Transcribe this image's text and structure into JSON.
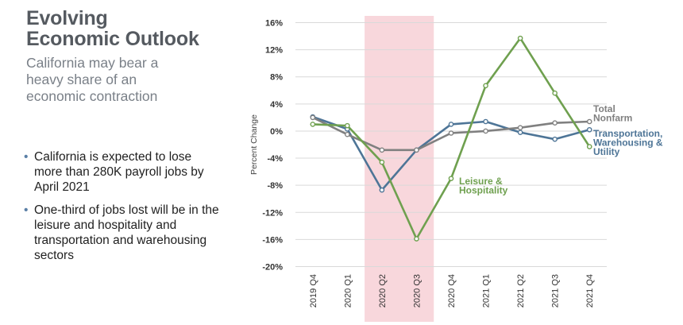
{
  "heading": {
    "title_lines": [
      "Evolving",
      "Economic Outlook"
    ],
    "subtitle_lines": [
      "California may bear a",
      "heavy share of an",
      "economic contraction"
    ]
  },
  "bullets": [
    "California is expected to lose more than 280K payroll jobs by April 2021",
    "One-third of jobs lost will be in the leisure and hospitality and transportation and warehousing sectors"
  ],
  "colors": {
    "total": "#808080",
    "transport": "#4e7597",
    "leisure": "#6fa04f",
    "recession": "#f8d7dc",
    "grid": "#d9d9d9"
  },
  "chart_data": {
    "type": "line",
    "ylabel": "Percent Change",
    "categories": [
      "2019 Q4",
      "2020 Q1",
      "2020 Q2",
      "2020 Q3",
      "2020 Q4",
      "2021 Q1",
      "2021 Q2",
      "2021 Q3",
      "2021 Q4"
    ],
    "ylim": [
      -20,
      16
    ],
    "yticks": [
      16,
      12,
      8,
      4,
      0,
      -4,
      -8,
      -12,
      -16,
      -20
    ],
    "ytick_labels": [
      "16%",
      "12%",
      "8%",
      "4%",
      "0%",
      "-4%",
      "-8%",
      "-12%",
      "-16%",
      "-20%"
    ],
    "shaded_range": [
      "2020 Q2",
      "2020 Q3"
    ],
    "series": [
      {
        "name": "Total Nonfarm",
        "label_lines": [
          "Total",
          "Nonfarm"
        ],
        "values": [
          2.0,
          -0.5,
          -2.8,
          -2.8,
          -0.3,
          0.0,
          0.5,
          1.2,
          1.4
        ]
      },
      {
        "name": "Transportation, Warehousing & Utility",
        "label_lines": [
          "Transportation,",
          "Warehousing &",
          "Utility"
        ],
        "values": [
          2.1,
          0.3,
          -8.7,
          -2.8,
          1.0,
          1.4,
          -0.2,
          -1.2,
          0.2
        ]
      },
      {
        "name": "Leisure & Hospitality",
        "label_lines": [
          "Leisure &",
          "Hospitality"
        ],
        "values": [
          1.0,
          0.8,
          -4.6,
          -15.9,
          -7.0,
          6.7,
          13.7,
          5.6,
          -2.3
        ]
      }
    ]
  }
}
